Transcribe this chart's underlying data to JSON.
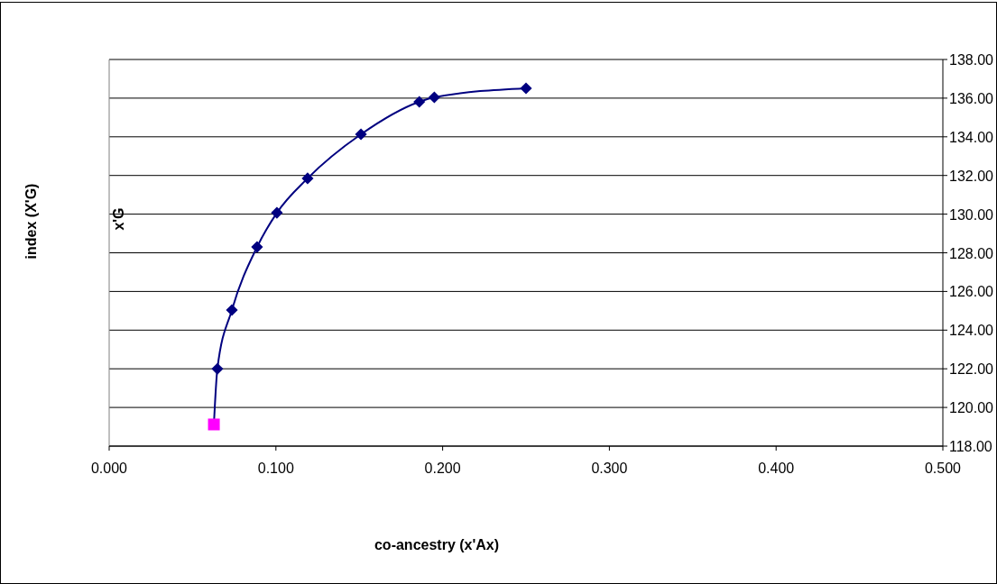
{
  "chart_data": {
    "type": "line",
    "xlabel": "co-ancestry (x'Ax)",
    "ylabel": "index (X'G)",
    "annotations": [
      "x'G"
    ],
    "xlim": [
      0,
      0.5
    ],
    "xticks": [
      {
        "value": 0,
        "label": "0.000"
      },
      {
        "value": 0.1,
        "label": "0.100"
      },
      {
        "value": 0.2,
        "label": "0.200"
      },
      {
        "value": 0.3,
        "label": "0.300"
      },
      {
        "value": 0.4,
        "label": "0.400"
      },
      {
        "value": 0.5,
        "label": "0.500"
      }
    ],
    "ylim": [
      118,
      138
    ],
    "yticks": [
      {
        "value": 118,
        "label": "118.00"
      },
      {
        "value": 120,
        "label": "120.00"
      },
      {
        "value": 122,
        "label": "122.00"
      },
      {
        "value": 124,
        "label": "124.00"
      },
      {
        "value": 126,
        "label": "126.00"
      },
      {
        "value": 128,
        "label": "128.00"
      },
      {
        "value": 130,
        "label": "130.00"
      },
      {
        "value": 132,
        "label": "132.00"
      },
      {
        "value": 134,
        "label": "134.00"
      },
      {
        "value": 136,
        "label": "136.00"
      },
      {
        "value": 138,
        "label": "138.00"
      }
    ],
    "grid": "y",
    "series": [
      {
        "color": "#000080",
        "marker": "none",
        "x": [
          0.0628,
          0.0649,
          0.0736,
          0.0887,
          0.1006,
          0.119,
          0.151,
          0.186,
          0.195,
          0.25
        ],
        "values": [
          119.12,
          122.0,
          125.04,
          128.3,
          130.07,
          131.85,
          134.13,
          135.81,
          136.04,
          136.51
        ]
      },
      {
        "type": "scatter",
        "color": "#000080",
        "marker": "diamond",
        "x": [
          0.0649,
          0.0736,
          0.0887,
          0.1006,
          0.119,
          0.151,
          0.186,
          0.195,
          0.25
        ],
        "values": [
          122.0,
          125.04,
          128.3,
          130.07,
          131.85,
          134.13,
          135.81,
          136.04,
          136.51
        ]
      },
      {
        "type": "scatter",
        "color": "#ff00ff",
        "marker": "square",
        "x": [
          0.0628
        ],
        "values": [
          119.12
        ]
      }
    ]
  }
}
